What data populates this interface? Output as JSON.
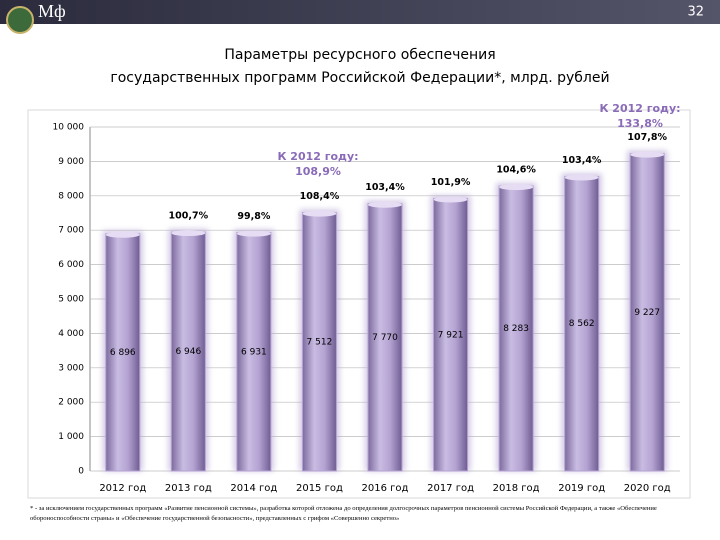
{
  "header": {
    "logo_text": "Мф",
    "page_number": "32"
  },
  "chart_data": {
    "type": "bar",
    "title": [
      "Параметры ресурсного обеспечения",
      "государственных программ Российской Федерации*, млрд. рублей"
    ],
    "categories": [
      "2012 год",
      "2013 год",
      "2014 год",
      "2015 год",
      "2016 год",
      "2017 год",
      "2018 год",
      "2019 год",
      "2020 год"
    ],
    "values": [
      6896,
      6946,
      6931,
      7512,
      7770,
      7921,
      8283,
      8562,
      9227
    ],
    "value_labels": [
      "6 896",
      "6 946",
      "6 931",
      "7 512",
      "7 770",
      "7 921",
      "8 283",
      "8 562",
      "9 227"
    ],
    "growth_labels": [
      null,
      "100,7%",
      "99,8%",
      "108,4%",
      "103,4%",
      "101,9%",
      "104,6%",
      "103,4%",
      "107,8%"
    ],
    "annotations": [
      [
        "К 2012 году:",
        "108,9%"
      ],
      [
        "К 2012 году:",
        "133,8%"
      ]
    ],
    "color": "#b4a3d2",
    "ylim": [
      0,
      10000
    ],
    "yticks": [
      0,
      {
        "value": 1000,
        "label": "1 000"
      },
      {
        "value": 2000,
        "label": "2 000"
      },
      {
        "value": 3000,
        "label": "3 000"
      },
      {
        "value": 4000,
        "label": "4 000"
      },
      {
        "value": 5000,
        "label": "5 000"
      },
      {
        "value": 6000,
        "label": "6 000"
      },
      {
        "value": 7000,
        "label": "7 000"
      },
      {
        "value": 8000,
        "label": "8 000"
      },
      {
        "value": 9000,
        "label": "9 000"
      },
      {
        "value": 10000,
        "label": "10 000"
      }
    ],
    "grid": true
  },
  "footnote": "* - за исключением государственных программ «Развитие пенсионной системы», разработка которой отложена до определения долгосрочных параметров пенсионной системы Российской Федерации, а также «Обеспечение обороноспособности страны» и «Обеспечение государственной безопасности», представленных с грифом «Совершенно секретно»"
}
